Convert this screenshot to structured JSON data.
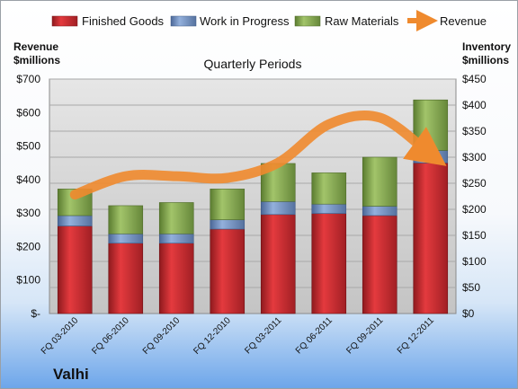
{
  "company": "Valhi",
  "colors": {
    "finished_goods": "#c0272d",
    "work_in_progress": "#6b8fc6",
    "raw_materials": "#7ea34a",
    "revenue": "#ef8a2e"
  },
  "chart_data": {
    "type": "bar",
    "subtype": "stacked bar with line overlay",
    "title": "Quarterly Periods",
    "categories": [
      "FQ 03-2010",
      "FQ 06-2010",
      "FQ 09-2010",
      "FQ 12-2010",
      "FQ 03-2011",
      "FQ 06-2011",
      "FQ 09-2011",
      "FQ 12-2011"
    ],
    "series": [
      {
        "name": "Finished Goods",
        "axis": "right",
        "values": [
          168,
          135,
          135,
          162,
          190,
          192,
          188,
          289
        ]
      },
      {
        "name": "Work in Progress",
        "axis": "right",
        "values": [
          20,
          18,
          18,
          18,
          25,
          18,
          18,
          24
        ]
      },
      {
        "name": "Raw Materials",
        "axis": "right",
        "values": [
          51,
          54,
          60,
          59,
          73,
          60,
          94,
          97
        ]
      },
      {
        "name": "Revenue",
        "axis": "left",
        "type": "line",
        "values": [
          355,
          410,
          410,
          405,
          450,
          565,
          585,
          475
        ]
      }
    ],
    "y_left": {
      "label_line1": "Revenue",
      "label_line2": "$millions",
      "range": [
        0,
        700
      ],
      "ticks": [
        "$-",
        "$100",
        "$200",
        "$300",
        "$400",
        "$500",
        "$600",
        "$700"
      ]
    },
    "y_right": {
      "label_line1": "Inventory",
      "label_line2": "$millions",
      "range": [
        0,
        450
      ],
      "ticks": [
        "$0",
        "$50",
        "$100",
        "$150",
        "$200",
        "$250",
        "$300",
        "$350",
        "$400",
        "$450"
      ]
    },
    "grid": true,
    "legend_position": "top"
  }
}
